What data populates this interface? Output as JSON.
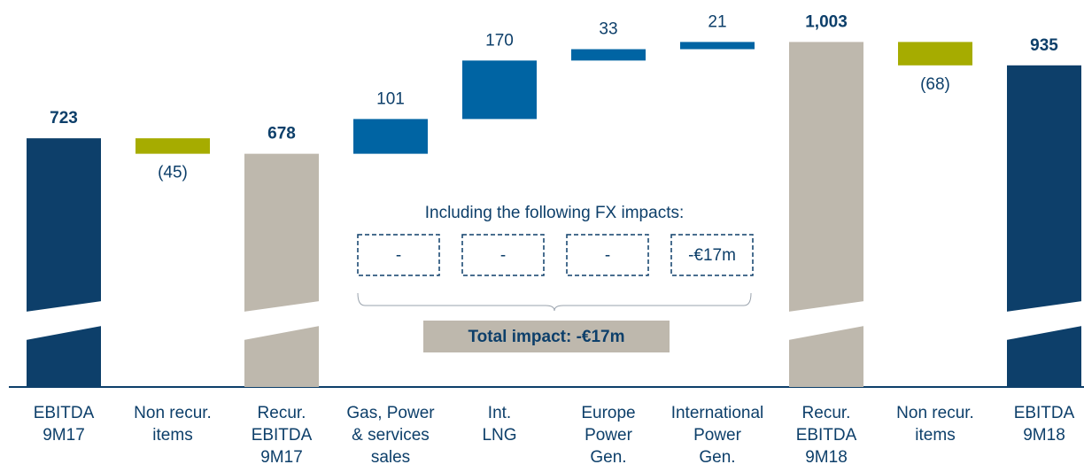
{
  "chart_data": {
    "type": "waterfall",
    "categories": [
      [
        "EBITDA",
        "9M17"
      ],
      [
        "Non recur.",
        "items"
      ],
      [
        "Recur.",
        "EBITDA",
        "9M17"
      ],
      [
        "Gas, Power",
        "& services",
        "sales"
      ],
      [
        "Int.",
        "LNG"
      ],
      [
        "Europe",
        "Power",
        "Gen."
      ],
      [
        "International",
        "Power",
        "Gen."
      ],
      [
        "Recur.",
        "EBITDA",
        "9M18"
      ],
      [
        "Non recur.",
        "items"
      ],
      [
        "EBITDA",
        "9M18"
      ]
    ],
    "values": [
      723,
      -45,
      678,
      101,
      170,
      33,
      21,
      1003,
      -68,
      935
    ],
    "value_labels": [
      "723",
      "(45)",
      "678",
      "101",
      "170",
      "33",
      "21",
      "1,003",
      "(68)",
      "935"
    ],
    "measure": [
      "absolute",
      "relative",
      "absolute",
      "relative",
      "relative",
      "relative",
      "relative",
      "absolute",
      "relative",
      "absolute"
    ],
    "colors": [
      "#0d3f6a",
      "#a6ac00",
      "#beb8ad",
      "#0064a3",
      "#0064a3",
      "#0064a3",
      "#0064a3",
      "#beb8ad",
      "#a6ac00",
      "#0d3f6a"
    ],
    "ylim": [
      0,
      1125
    ],
    "fx_impacts": {
      "title": "Including the following FX impacts:",
      "items": [
        "-",
        "-",
        "-",
        "-€17m"
      ],
      "total": "Total impact: -€17m"
    }
  }
}
